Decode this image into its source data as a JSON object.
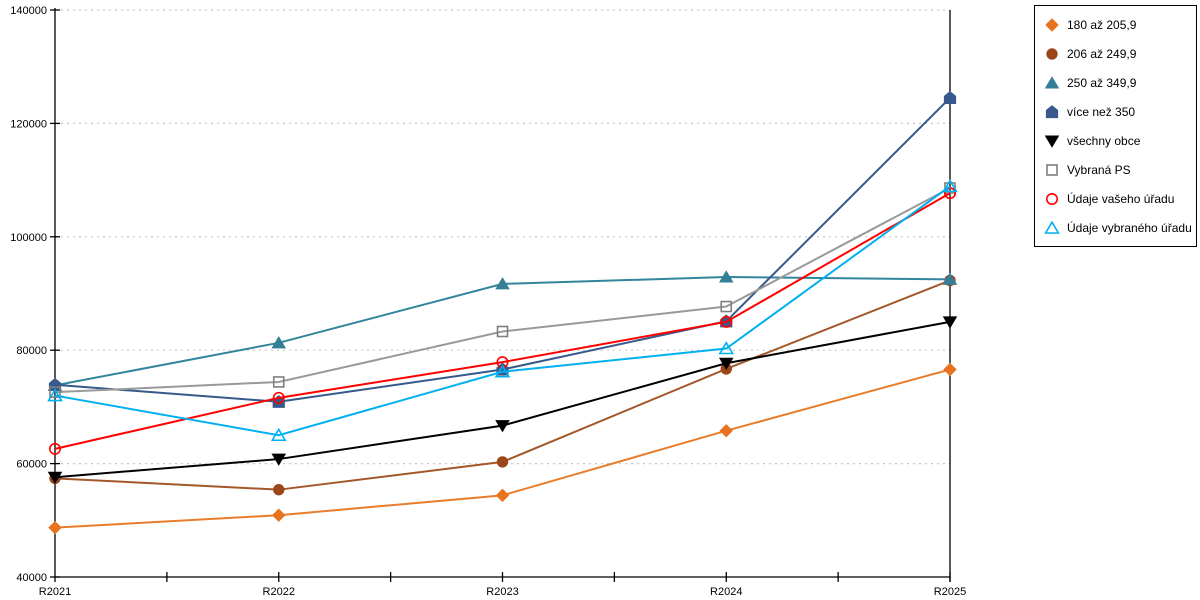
{
  "chart_data": {
    "type": "line",
    "title": "",
    "xlabel": "",
    "ylabel": "",
    "categories": [
      "R2021",
      "R2022",
      "R2023",
      "R2024",
      "R2025"
    ],
    "ylim": [
      40000,
      140000
    ],
    "yticks": [
      40000,
      60000,
      80000,
      100000,
      120000,
      140000
    ],
    "grid": "horizontal-dotted",
    "legend_position": "top-right-outside",
    "series": [
      {
        "name": "180 až 205,9",
        "marker": "diamond",
        "filled": true,
        "color": "#E87D2B",
        "marker_color": "#E8731E",
        "values": [
          48700,
          50900,
          54400,
          65800,
          76600
        ]
      },
      {
        "name": "206 až 249,9",
        "marker": "circle",
        "filled": true,
        "color": "#A3582B",
        "marker_color": "#9C4718",
        "values": [
          57400,
          55400,
          60300,
          76700,
          92300
        ]
      },
      {
        "name": "250 až 349,9",
        "marker": "triangle-up",
        "filled": true,
        "color": "#31859C",
        "marker_color": "#357E96",
        "values": [
          73800,
          81300,
          91700,
          92900,
          92500
        ]
      },
      {
        "name": "více než 350",
        "marker": "pentagon",
        "filled": true,
        "color": "#37598C",
        "marker_color": "#37598C",
        "values": [
          73900,
          70900,
          76600,
          85100,
          124500
        ]
      },
      {
        "name": "všechny obce",
        "marker": "triangle-down",
        "filled": true,
        "color": "#000000",
        "marker_color": "#000000",
        "values": [
          57600,
          60800,
          66700,
          77700,
          85000
        ]
      },
      {
        "name": "Vybraná PS",
        "marker": "square",
        "filled": false,
        "color": "#999999",
        "marker_color": "#7F7F7F",
        "values": [
          72600,
          74400,
          83300,
          87700,
          108600
        ]
      },
      {
        "name": "Údaje vašeho úřadu",
        "marker": "circle",
        "filled": false,
        "color": "#FF0000",
        "marker_color": "#FF0000",
        "values": [
          62600,
          71600,
          77900,
          85000,
          107700
        ]
      },
      {
        "name": "Údaje vybraného úřadu",
        "marker": "triangle-up",
        "filled": false,
        "color": "#00B0F0",
        "marker_color": "#00B0F0",
        "values": [
          72000,
          65000,
          76200,
          80300,
          108900
        ]
      }
    ],
    "axis_color": "#000000",
    "gridline_color": "#C6C6C6"
  }
}
